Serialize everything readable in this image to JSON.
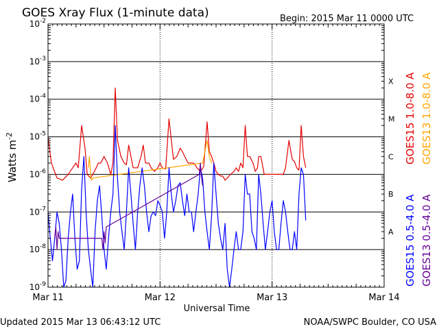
{
  "header": {
    "title": "GOES Xray Flux (1-minute data)",
    "begin": "Begin:  2015 Mar 11 0000 UTC"
  },
  "footer": {
    "updated": "Updated 2015 Mar 13 06:43:12 UTC",
    "credit": "NOAA/SWPC Boulder, CO USA"
  },
  "chart_data": {
    "type": "line",
    "title": "GOES Xray Flux (1-minute data)",
    "xlabel": "Universal Time",
    "ylabel": "Watts m",
    "ylabel_sup": "-2",
    "y_scale": "log",
    "ylim": [
      1e-09,
      0.01
    ],
    "xlim_days": [
      0,
      3
    ],
    "grid": true,
    "y_ticks": [
      {
        "value": 1e-09,
        "base": "10",
        "exp": "-9"
      },
      {
        "value": 1e-08,
        "base": "10",
        "exp": "-8"
      },
      {
        "value": 1e-07,
        "base": "10",
        "exp": "-7"
      },
      {
        "value": 1e-06,
        "base": "10",
        "exp": "-6"
      },
      {
        "value": 1e-05,
        "base": "10",
        "exp": "-5"
      },
      {
        "value": 0.0001,
        "base": "10",
        "exp": "-4"
      },
      {
        "value": 0.001,
        "base": "10",
        "exp": "-3"
      },
      {
        "value": 0.01,
        "base": "10",
        "exp": "-2"
      }
    ],
    "x_ticks": [
      {
        "day": 0,
        "label": "Mar 11"
      },
      {
        "day": 1,
        "label": "Mar 12"
      },
      {
        "day": 2,
        "label": "Mar 13"
      },
      {
        "day": 3,
        "label": "Mar 14"
      }
    ],
    "flare_classes": [
      {
        "label": "A",
        "value": 3e-08
      },
      {
        "label": "B",
        "value": 3e-07
      },
      {
        "label": "C",
        "value": 3e-06
      },
      {
        "label": "M",
        "value": 3e-05
      },
      {
        "label": "X",
        "value": 0.0003
      }
    ],
    "series": [
      {
        "name": "GOES15 1.0-8.0 A",
        "color": "#e60000",
        "x": [
          0,
          0.03,
          0.08,
          0.13,
          0.18,
          0.22,
          0.25,
          0.27,
          0.3,
          0.33,
          0.35,
          0.38,
          0.4,
          0.43,
          0.45,
          0.47,
          0.5,
          0.53,
          0.56,
          0.58,
          0.6,
          0.62,
          0.65,
          0.68,
          0.7,
          0.72,
          0.74,
          0.76,
          0.8,
          0.83,
          0.85,
          0.87,
          0.9,
          0.92,
          0.95,
          0.98,
          1.0,
          1.02,
          1.05,
          1.08,
          1.12,
          1.15,
          1.18,
          1.2,
          1.22,
          1.25,
          1.3,
          1.33,
          1.36,
          1.39,
          1.42,
          1.44,
          1.46,
          1.48,
          1.5,
          1.52,
          1.54,
          1.56,
          1.58,
          1.6,
          1.63,
          1.66,
          1.68,
          1.7,
          1.72,
          1.74,
          1.76,
          1.78,
          1.8,
          1.83,
          1.85,
          1.87,
          1.88,
          1.9,
          1.93,
          1.95,
          1.98,
          2.0,
          2.02,
          2.05,
          2.08,
          2.1,
          2.12,
          2.15,
          2.18,
          2.2,
          2.22,
          2.24,
          2.26,
          2.28,
          2.3
        ],
        "values": [
          1e-05,
          2e-06,
          8e-07,
          7e-07,
          1e-06,
          1.5e-06,
          2e-06,
          1.5e-06,
          2e-05,
          5e-06,
          1e-06,
          8e-07,
          1e-06,
          1.5e-06,
          2e-06,
          2e-06,
          3e-06,
          2e-06,
          1e-06,
          2e-06,
          0.0002,
          8e-06,
          3e-06,
          2e-06,
          1.8e-06,
          6e-06,
          3e-06,
          1.5e-06,
          1.5e-06,
          3e-06,
          6e-06,
          2e-06,
          2e-06,
          1.5e-06,
          1.2e-06,
          1.5e-06,
          2e-06,
          1.5e-06,
          1.4e-06,
          3e-05,
          2.5e-06,
          3e-06,
          5e-06,
          4e-06,
          3e-06,
          2e-06,
          2e-06,
          1.5e-06,
          1.2e-06,
          1.6e-06,
          2.5e-05,
          4e-06,
          3e-06,
          2e-06,
          1.2e-06,
          1e-06,
          9e-07,
          9e-07,
          7e-07,
          8e-07,
          1e-06,
          1.2e-06,
          1.5e-06,
          1.2e-06,
          2e-06,
          1.5e-06,
          2e-05,
          3e-06,
          3e-06,
          2e-06,
          1.2e-06,
          1.5e-06,
          3e-06,
          3e-06,
          1e-06,
          1e-06,
          1e-06,
          1e-06,
          1e-06,
          1e-06,
          1e-06,
          1e-06,
          1.5e-06,
          8e-06,
          2.5e-06,
          2.2e-06,
          1.5e-06,
          1.3e-06,
          2e-05,
          3e-06,
          1.5e-06
        ]
      },
      {
        "name": "GOES13 1.0-8.0 A",
        "color": "#ffa500",
        "x": [
          0.36,
          0.37,
          0.38,
          0.39,
          0.4,
          1.38,
          1.4,
          1.42,
          1.44,
          1.46
        ],
        "values": [
          1.5e-06,
          3e-06,
          1e-06,
          7e-07,
          8e-07,
          2e-06,
          4e-06,
          8e-06,
          3e-06,
          2e-06
        ]
      },
      {
        "name": "GOES15 0.5-4.0 A",
        "color": "#0000ff",
        "x": [
          0,
          0.02,
          0.04,
          0.06,
          0.08,
          0.1,
          0.12,
          0.14,
          0.16,
          0.18,
          0.2,
          0.22,
          0.24,
          0.26,
          0.28,
          0.3,
          0.32,
          0.34,
          0.36,
          0.38,
          0.4,
          0.42,
          0.44,
          0.46,
          0.48,
          0.5,
          0.52,
          0.54,
          0.56,
          0.58,
          0.6,
          0.62,
          0.64,
          0.66,
          0.68,
          0.7,
          0.72,
          0.74,
          0.76,
          0.78,
          0.8,
          0.82,
          0.84,
          0.86,
          0.88,
          0.9,
          0.92,
          0.94,
          0.96,
          0.98,
          1.0,
          1.02,
          1.04,
          1.06,
          1.08,
          1.1,
          1.12,
          1.14,
          1.16,
          1.18,
          1.2,
          1.22,
          1.24,
          1.26,
          1.28,
          1.3,
          1.32,
          1.34,
          1.36,
          1.38,
          1.4,
          1.42,
          1.44,
          1.46,
          1.48,
          1.5,
          1.52,
          1.54,
          1.56,
          1.58,
          1.6,
          1.62,
          1.64,
          1.66,
          1.68,
          1.7,
          1.72,
          1.74,
          1.76,
          1.78,
          1.8,
          1.82,
          1.84,
          1.86,
          1.88,
          1.9,
          1.92,
          1.94,
          1.96,
          1.98,
          2.0,
          2.02,
          2.04,
          2.06,
          2.08,
          2.1,
          2.12,
          2.14,
          2.16,
          2.18,
          2.2,
          2.22,
          2.24,
          2.26,
          2.28,
          2.3
        ],
        "values": [
          1e-07,
          2e-08,
          5e-09,
          2e-08,
          1e-07,
          5e-08,
          1e-08,
          1e-09,
          1.5e-09,
          2e-08,
          1e-07,
          3e-07,
          2e-08,
          3e-09,
          5e-09,
          4e-07,
          3e-06,
          1e-07,
          1e-08,
          3e-09,
          1e-09,
          3e-08,
          2e-07,
          5e-07,
          8e-08,
          1e-08,
          3e-09,
          2e-08,
          1e-07,
          3e-07,
          2e-05,
          8e-07,
          1e-07,
          3e-08,
          1e-08,
          1e-07,
          1.5e-06,
          3e-07,
          5e-08,
          1e-08,
          1e-07,
          5e-07,
          1.5e-06,
          5e-07,
          1e-07,
          3e-08,
          8e-08,
          1e-07,
          8e-08,
          2e-07,
          1.5e-07,
          1e-07,
          2e-08,
          1e-07,
          1.5e-06,
          3e-07,
          1e-07,
          2e-07,
          5e-07,
          6e-07,
          2e-07,
          8e-08,
          3e-07,
          1e-07,
          1e-07,
          3e-08,
          1e-07,
          3e-07,
          1.5e-06,
          8e-07,
          1e-07,
          3e-08,
          1e-08,
          8e-08,
          2e-06,
          3e-07,
          5e-08,
          2e-08,
          1e-08,
          5e-08,
          3e-09,
          1e-09,
          3e-09,
          1e-08,
          3e-08,
          1e-08,
          1e-08,
          3e-08,
          1e-06,
          3e-07,
          3e-07,
          3e-08,
          2e-08,
          1e-08,
          1e-06,
          3e-07,
          5e-08,
          1e-08,
          3e-08,
          1e-07,
          2e-07,
          3e-08,
          1e-08,
          1e-08,
          5e-08,
          2e-07,
          1e-07,
          3e-08,
          1e-08,
          1e-08,
          3e-08,
          1e-08,
          3e-07,
          1.5e-06,
          1e-06,
          6e-08
        ]
      },
      {
        "name": "GOES13 0.5-4.0 A",
        "color": "#660099",
        "x": [
          0.06,
          0.07,
          0.08,
          0.09,
          0.1,
          0.48,
          0.49,
          0.5,
          0.51,
          0.52,
          1.35,
          1.36,
          1.37,
          1.38
        ],
        "values": [
          2e-08,
          4e-08,
          1e-08,
          3e-08,
          2e-08,
          2e-08,
          1e-08,
          3e-08,
          1.5e-08,
          4e-08,
          1e-06,
          2e-06,
          8e-07,
          5e-07
        ]
      }
    ],
    "legend": "right, rotated vertical"
  }
}
